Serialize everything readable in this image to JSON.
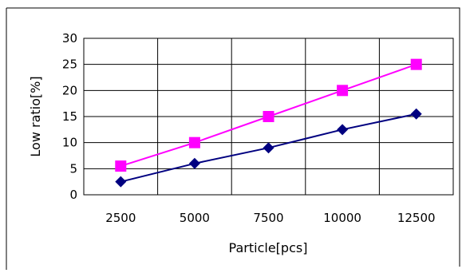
{
  "chart_data": {
    "type": "line",
    "title": "",
    "xlabel": "Particle[pcs]",
    "ylabel": "Low ratio[%]",
    "categories": [
      "2500",
      "5000",
      "7500",
      "10000",
      "12500"
    ],
    "ylim": [
      0,
      30
    ],
    "yticks": [
      0,
      5,
      10,
      15,
      20,
      25,
      30
    ],
    "grid": true,
    "legend": "none",
    "series": [
      {
        "color": "#000080",
        "marker": "diamond",
        "values": [
          2.5,
          6,
          9,
          12.5,
          15.5
        ]
      },
      {
        "color": "#ff00ff",
        "marker": "square",
        "values": [
          5.5,
          10,
          15,
          20,
          25
        ]
      }
    ]
  }
}
